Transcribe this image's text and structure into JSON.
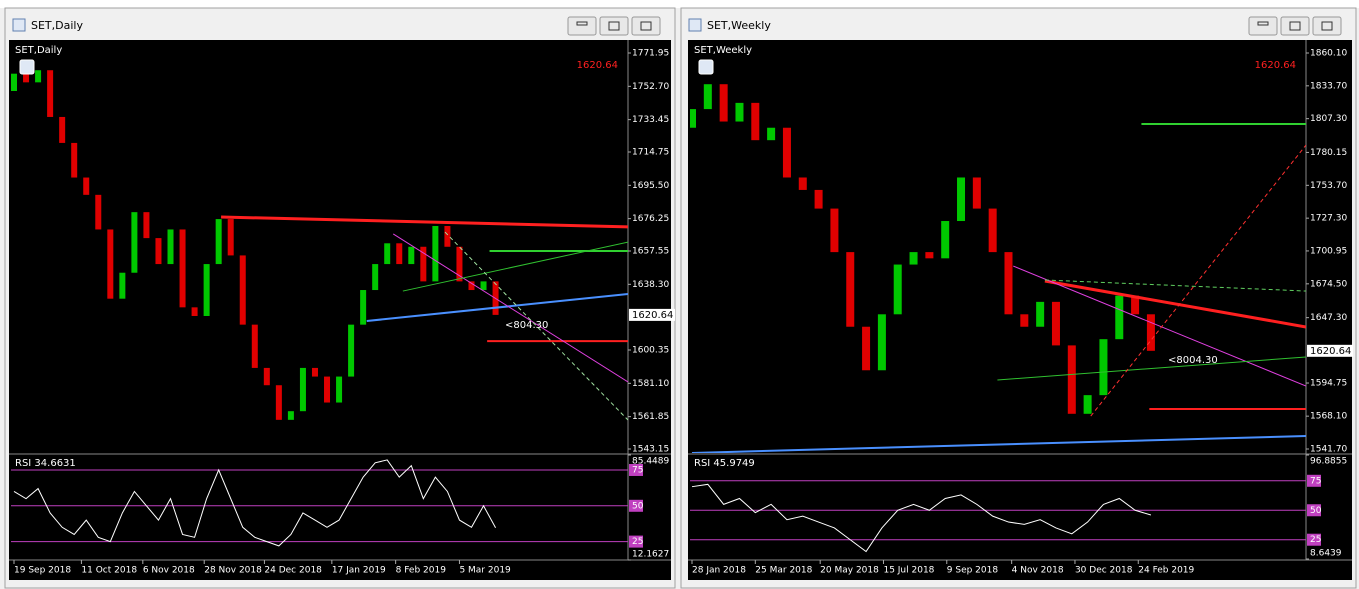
{
  "windows": [
    {
      "title": "SET,Daily",
      "chart": {
        "label": "SET,Daily",
        "last_price": 1620.64,
        "annotation": "<804.30",
        "up_color": "#00c800",
        "down_color": "#e00000",
        "ylim": [
          1540.84,
          1778.31
        ],
        "yticks": [
          1771.95,
          {
            "value": 1752.7,
            "label": "1752.70"
          },
          1733.45,
          1714.75,
          {
            "value": 1695.5,
            "label": "1695.50"
          },
          1676.25,
          1657.55,
          {
            "value": 1638.3,
            "label": "1638.30"
          },
          1600.35,
          {
            "value": 1581.1,
            "label": "1581.10"
          },
          1561.85,
          1543.15
        ],
        "xlim": [
          0,
          51
        ],
        "xticks": [
          {
            "value": 0,
            "label": "19 Sep 2018"
          },
          {
            "value": 5.6,
            "label": "11 Oct 2018"
          },
          {
            "value": 10.7,
            "label": "6 Nov 2018"
          },
          {
            "value": 15.8,
            "label": "28 Nov 2018"
          },
          {
            "value": 20.8,
            "label": "24 Dec 2018"
          },
          {
            "value": 26.4,
            "label": "17 Jan 2019"
          },
          {
            "value": 31.7,
            "label": "8 Feb 2019"
          },
          {
            "value": 37.0,
            "label": "5 Mar 2019"
          }
        ],
        "open": [
          1750,
          1760,
          1755,
          1762,
          1735,
          1720,
          1700,
          1690,
          1670,
          1630,
          1645,
          1680,
          1665,
          1650,
          1670,
          1625,
          1620,
          1650,
          1676,
          1655,
          1615,
          1590,
          1580,
          1560,
          1565,
          1590,
          1585,
          1570,
          1585,
          1615,
          1635,
          1650,
          1662,
          1650,
          1660,
          1640,
          1672,
          1660,
          1640,
          1635,
          1640
        ],
        "close": [
          1760,
          1755,
          1762,
          1735,
          1720,
          1700,
          1690,
          1670,
          1630,
          1645,
          1680,
          1665,
          1650,
          1670,
          1625,
          1620,
          1650,
          1676,
          1655,
          1615,
          1590,
          1580,
          1560,
          1565,
          1590,
          1585,
          1570,
          1585,
          1615,
          1635,
          1650,
          1662,
          1650,
          1660,
          1640,
          1672,
          1660,
          1640,
          1635,
          1640,
          1620.64
        ],
        "drawings": [
          {
            "color": "#ff2020",
            "width": 3,
            "dash": false,
            "from": [
              17.2,
              1677.2
            ],
            "to": [
              51,
              1671.5
            ]
          },
          {
            "color": "#30d030",
            "width": 2,
            "dash": false,
            "from": [
              39.5,
              1657.55
            ],
            "to": [
              51,
              1657.55
            ]
          },
          {
            "color": "#ff2020",
            "width": 2,
            "dash": false,
            "from": [
              39.3,
              1605.5
            ],
            "to": [
              51,
              1605.5
            ]
          },
          {
            "color": "#4a90ff",
            "width": 2,
            "dash": false,
            "from": [
              29.3,
              1617.1
            ],
            "to": [
              51,
              1632.7
            ]
          },
          {
            "color": "#e040e0",
            "width": 1,
            "dash": false,
            "from": [
              31.5,
              1667.4
            ],
            "to": [
              51,
              1581.9
            ]
          },
          {
            "color": "#30c030",
            "width": 1,
            "dash": false,
            "from": [
              32.3,
              1634.4
            ],
            "to": [
              51,
              1662.7
            ]
          },
          {
            "color": "#a0e0a0",
            "width": 1,
            "dash": true,
            "from": [
              35.8,
              1668.5
            ],
            "to": [
              51,
              1559.9
            ]
          }
        ]
      },
      "rsi": {
        "label": "RSI 34.6631",
        "ylim": [
          12.1627,
          85.4489
        ],
        "yticks": [
          85.4489,
          75,
          50,
          25,
          12.1627
        ],
        "values": [
          60,
          55,
          62,
          45,
          35,
          30,
          40,
          28,
          25,
          45,
          60,
          50,
          40,
          55,
          30,
          28,
          55,
          75,
          55,
          35,
          28,
          25,
          22,
          30,
          45,
          40,
          35,
          40,
          55,
          70,
          80,
          82,
          70,
          78,
          55,
          70,
          60,
          40,
          35,
          50,
          34.66
        ]
      }
    },
    {
      "title": "SET,Weekly",
      "chart": {
        "label": "SET,Weekly",
        "last_price": 1620.64,
        "annotation": "<8004.30",
        "up_color": "#00c800",
        "down_color": "#e00000",
        "ylim": [
          1538.48,
          1868.94
        ],
        "yticks": [
          {
            "value": 1860.1,
            "label": "1860.10"
          },
          {
            "value": 1833.7,
            "label": "1833.70"
          },
          {
            "value": 1807.3,
            "label": "1807.30"
          },
          1780.15,
          {
            "value": 1753.7,
            "label": "1753.70"
          },
          {
            "value": 1727.3,
            "label": "1727.30"
          },
          1700.95,
          {
            "value": 1674.5,
            "label": "1674.50"
          },
          {
            "value": 1647.3,
            "label": "1647.30"
          },
          1594.75,
          {
            "value": 1568.1,
            "label": "1568.10"
          },
          {
            "value": 1541.7,
            "label": "1541.70"
          }
        ],
        "xlim": [
          0,
          38.8
        ],
        "xticks": [
          {
            "value": 0,
            "label": "28 Jan 2018"
          },
          {
            "value": 4,
            "label": "25 Mar 2018"
          },
          {
            "value": 8.1,
            "label": "20 May 2018"
          },
          {
            "value": 12.1,
            "label": "15 Jul 2018"
          },
          {
            "value": 16.1,
            "label": "9 Sep 2018"
          },
          {
            "value": 20.2,
            "label": "4 Nov 2018"
          },
          {
            "value": 24.2,
            "label": "30 Dec 2018"
          },
          {
            "value": 28.2,
            "label": "24 Feb 2019"
          }
        ],
        "open": [
          1800,
          1815,
          1835,
          1805,
          1820,
          1790,
          1800,
          1760,
          1750,
          1735,
          1700,
          1640,
          1605,
          1650,
          1690,
          1700,
          1695,
          1725,
          1760,
          1735,
          1700,
          1650,
          1640,
          1660,
          1625,
          1570,
          1585,
          1630,
          1665,
          1650
        ],
        "close": [
          1815,
          1835,
          1805,
          1820,
          1790,
          1800,
          1760,
          1750,
          1735,
          1700,
          1640,
          1605,
          1650,
          1690,
          1700,
          1695,
          1725,
          1760,
          1735,
          1700,
          1650,
          1640,
          1660,
          1625,
          1570,
          1585,
          1630,
          1665,
          1650,
          1620.64
        ],
        "drawings": [
          {
            "color": "#30d030",
            "width": 2,
            "dash": false,
            "from": [
              28.4,
              1803.0
            ],
            "to": [
              38.8,
              1803.0
            ]
          },
          {
            "color": "#ff2020",
            "width": 2,
            "dash": false,
            "from": [
              28.9,
              1573.9
            ],
            "to": [
              38.8,
              1573.9
            ]
          },
          {
            "color": "#ff2020",
            "width": 3,
            "dash": false,
            "from": [
              22.3,
              1676.8
            ],
            "to": [
              38.8,
              1639.8
            ]
          },
          {
            "color": "#e040e0",
            "width": 1,
            "dash": false,
            "from": [
              20.3,
              1688.8
            ],
            "to": [
              38.8,
              1592.3
            ]
          },
          {
            "color": "#4a90ff",
            "width": 2,
            "dash": false,
            "from": [
              0,
              1538.5
            ],
            "to": [
              38.8,
              1552.1
            ]
          },
          {
            "color": "#30c030",
            "width": 1,
            "dash": false,
            "from": [
              19.3,
              1597.2
            ],
            "to": [
              38.8,
              1615.7
            ]
          },
          {
            "color": "#ff3030",
            "width": 1,
            "dash": true,
            "from": [
              25.2,
              1568.2
            ],
            "to": [
              38.8,
              1786.1
            ]
          },
          {
            "color": "#60d060",
            "width": 1,
            "dash": true,
            "from": [
              22.3,
              1677.6
            ],
            "to": [
              38.8,
              1668.7
            ]
          }
        ]
      },
      "rsi": {
        "label": "RSI 45.9749",
        "ylim": [
          8.6439,
          96.8855
        ],
        "yticks": [
          96.8855,
          75,
          50,
          25,
          8.6439
        ],
        "values": [
          70,
          72,
          55,
          60,
          48,
          55,
          42,
          45,
          40,
          35,
          25,
          15,
          35,
          50,
          55,
          50,
          60,
          63,
          55,
          45,
          40,
          38,
          42,
          35,
          30,
          40,
          55,
          60,
          50,
          45.97
        ]
      }
    }
  ]
}
